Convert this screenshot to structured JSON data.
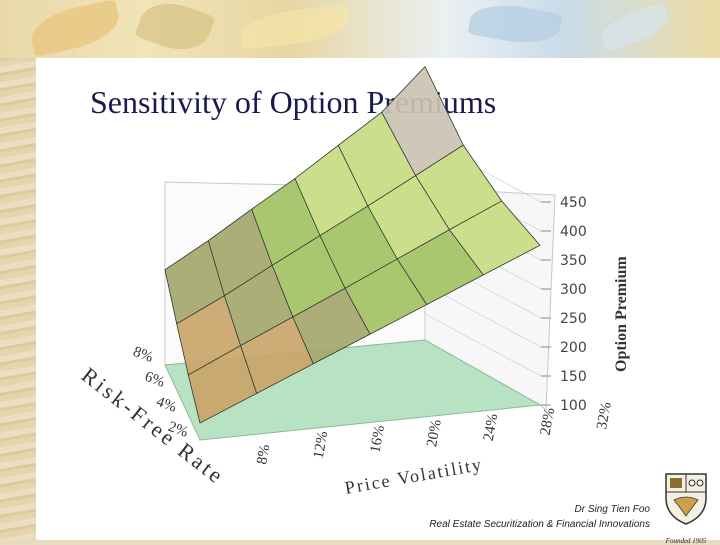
{
  "slide": {
    "title": "Sensitivity of Option Premiums",
    "footer_author": "Dr Sing Tien Foo",
    "footer_course": "Real Estate Securitization & Financial Innovations",
    "logo_caption": "Founded 1905"
  },
  "colors": {
    "title": "#1a1a50",
    "band_100_150": "#f7a85b",
    "band_150_200": "#c9a66b",
    "band_200_250": "#a6a86e",
    "band_250_300": "#a3c364",
    "band_300_350": "#c6dc82",
    "band_350_400": "#cbc3b1",
    "band_400_450": "#2c3e86",
    "floor": "#b7e3c2"
  },
  "chart_data": {
    "type": "surface",
    "title": "",
    "x_axis": {
      "label": "Price Volatility",
      "ticks": [
        "8%",
        "12%",
        "16%",
        "20%",
        "24%",
        "28%",
        "32%"
      ]
    },
    "y_axis": {
      "label": "Risk-Free Rate",
      "ticks": [
        "2%",
        "4%",
        "6%",
        "8%"
      ]
    },
    "z_axis": {
      "label": "Option Premium",
      "ticks": [
        "100",
        "150",
        "200",
        "250",
        "300",
        "350",
        "400",
        "450"
      ],
      "range": [
        100,
        450
      ]
    },
    "z_grid": [
      [
        125,
        160,
        195,
        230,
        265,
        300,
        335
      ],
      [
        155,
        188,
        220,
        252,
        285,
        318,
        350
      ],
      [
        185,
        215,
        248,
        280,
        312,
        345,
        378
      ],
      [
        215,
        245,
        278,
        310,
        345,
        380,
        430
      ]
    ],
    "grid": true
  }
}
